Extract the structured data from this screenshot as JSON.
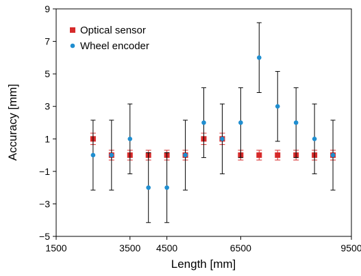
{
  "chart_data": {
    "type": "scatter",
    "xlabel": "Length [mm]",
    "ylabel": "Accuracy [mm]",
    "xlim": [
      1500,
      9500
    ],
    "ylim": [
      -5,
      9
    ],
    "xticks": [
      1500,
      3500,
      4500,
      6500,
      9500
    ],
    "x_tick_labels": [
      "1500",
      "3500",
      "4500",
      "6500",
      "9500"
    ],
    "yticks": [
      -5,
      -3,
      -1,
      1,
      3,
      5,
      7,
      9
    ],
    "y_tick_labels": [
      "−5",
      "−3",
      "−1",
      "1",
      "3",
      "5",
      "7",
      "9"
    ],
    "legend_position": "top-left",
    "grid": false,
    "series": [
      {
        "name": "Optical sensor",
        "marker": "square",
        "color": "#d62a2a",
        "x": [
          2500,
          3000,
          3500,
          4000,
          4500,
          5000,
          5500,
          6000,
          6500,
          7000,
          7500,
          8000,
          8500,
          9000
        ],
        "y": [
          1,
          0,
          0,
          0,
          0,
          0,
          1,
          1,
          0,
          0,
          0,
          0,
          0,
          0
        ],
        "error_low": [
          0.35,
          0.3,
          0.3,
          0.3,
          0.3,
          0.3,
          0.35,
          0.35,
          0.3,
          0.3,
          0.3,
          0.3,
          0.3,
          0.3
        ],
        "error_high": [
          0.35,
          0.3,
          0.3,
          0.3,
          0.3,
          0.3,
          0.35,
          0.35,
          0.3,
          0.3,
          0.3,
          0.3,
          0.3,
          0.3
        ]
      },
      {
        "name": "Wheel encoder",
        "marker": "circle",
        "color": "#1f8ed0",
        "x": [
          2500,
          3000,
          3500,
          4000,
          4500,
          5000,
          5500,
          6000,
          6500,
          7000,
          7500,
          8000,
          8500,
          9000
        ],
        "y": [
          0,
          0,
          1,
          -2,
          -2,
          0,
          2,
          1,
          2,
          6,
          3,
          2,
          1,
          0
        ],
        "error_low": [
          2.15,
          2.15,
          2.15,
          2.15,
          2.15,
          2.15,
          2.15,
          2.15,
          2.15,
          2.15,
          2.15,
          2.15,
          2.15,
          2.15
        ],
        "error_high": [
          2.15,
          2.15,
          2.15,
          2.15,
          2.15,
          2.15,
          2.15,
          2.15,
          2.15,
          2.15,
          2.15,
          2.15,
          2.15,
          2.15
        ]
      }
    ]
  }
}
